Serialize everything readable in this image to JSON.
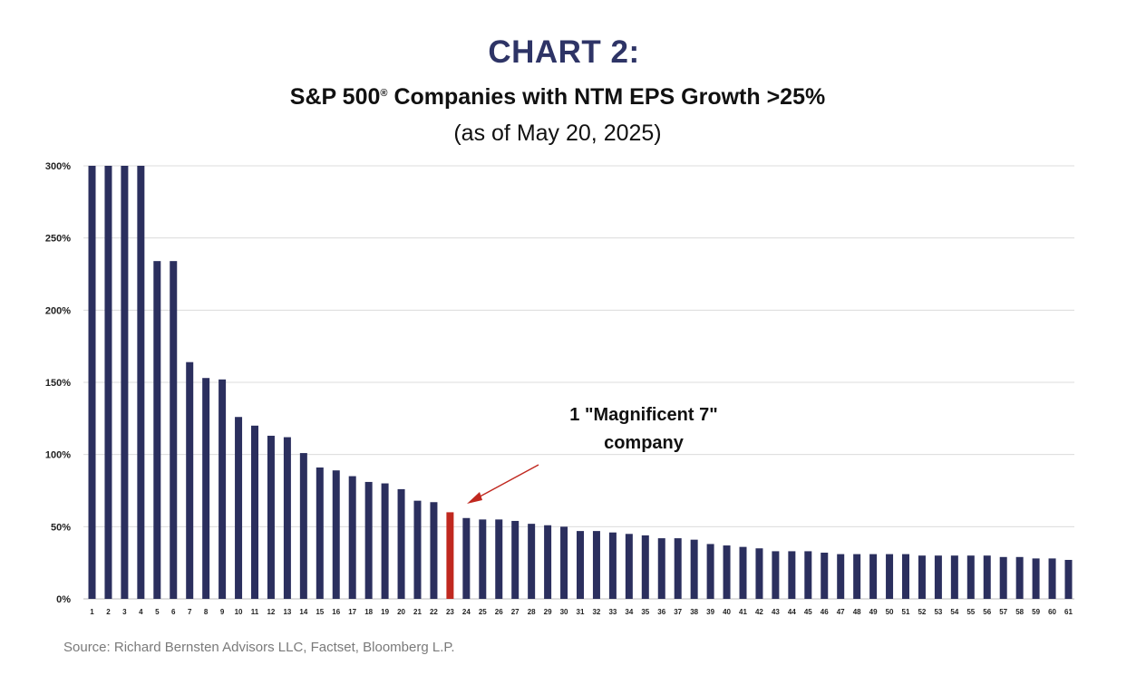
{
  "header": {
    "title": "CHART 2:",
    "subtitle_text": "S&P 500",
    "subtitle_reg": "®",
    "subtitle_rest": " Companies with NTM EPS Growth >25%",
    "date_note": "(as of May 20, 2025)"
  },
  "annotation": {
    "line1": "1 \"Magnificent 7\"",
    "line2": "company"
  },
  "source": "Source: Richard Bernsten Advisors LLC,  Factset, Bloomberg L.P.",
  "colors": {
    "bar": "#2b2f5e",
    "highlight": "#c0281f",
    "title": "#2e3466",
    "grid": "#dcdcdc"
  },
  "chart_data": {
    "type": "bar",
    "categories": [
      "1",
      "2",
      "3",
      "4",
      "5",
      "6",
      "7",
      "8",
      "9",
      "10",
      "11",
      "12",
      "13",
      "14",
      "15",
      "16",
      "17",
      "18",
      "19",
      "20",
      "21",
      "22",
      "23",
      "24",
      "25",
      "26",
      "27",
      "28",
      "29",
      "30",
      "31",
      "32",
      "33",
      "34",
      "35",
      "36",
      "37",
      "38",
      "39",
      "40",
      "41",
      "42",
      "43",
      "44",
      "45",
      "46",
      "47",
      "48",
      "49",
      "50",
      "51",
      "52",
      "53",
      "54",
      "55",
      "56",
      "57",
      "58",
      "59",
      "60",
      "61"
    ],
    "values": [
      300,
      300,
      300,
      300,
      234,
      234,
      164,
      153,
      152,
      126,
      120,
      113,
      112,
      101,
      91,
      89,
      85,
      81,
      80,
      76,
      68,
      67,
      60,
      56,
      55,
      55,
      54,
      52,
      51,
      50,
      47,
      47,
      46,
      45,
      44,
      42,
      42,
      41,
      38,
      37,
      36,
      35,
      33,
      33,
      33,
      32,
      31,
      31,
      31,
      31,
      31,
      30,
      30,
      30,
      30,
      30,
      29,
      29,
      28,
      28,
      27
    ],
    "highlight_index": 22,
    "ylim": [
      0,
      300
    ],
    "yticks": [
      0,
      50,
      100,
      150,
      200,
      250,
      300
    ],
    "ytick_labels": [
      "0%",
      "50%",
      "100%",
      "150%",
      "200%",
      "250%",
      "300%"
    ],
    "grid": true,
    "legend": "none"
  }
}
